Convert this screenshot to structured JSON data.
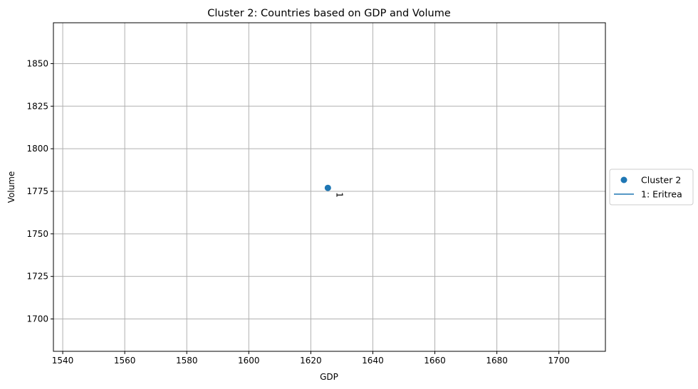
{
  "chart_data": {
    "type": "scatter",
    "title": "Cluster 2: Countries based on GDP and Volume",
    "xlabel": "GDP",
    "ylabel": "Volume",
    "xlim": [
      1537,
      1715
    ],
    "ylim": [
      1681,
      1874
    ],
    "xticks": [
      1540,
      1560,
      1580,
      1600,
      1620,
      1640,
      1660,
      1680,
      1700
    ],
    "yticks": [
      1700,
      1725,
      1750,
      1775,
      1800,
      1825,
      1850
    ],
    "grid": true,
    "legend_position": "right-outside",
    "series": [
      {
        "name": "Cluster 2",
        "color": "#1f77b4",
        "points": [
          {
            "x": 1625.5,
            "y": 1777,
            "label": "1"
          }
        ]
      }
    ],
    "legend": [
      "Cluster 2",
      "1: Eritrea"
    ]
  }
}
